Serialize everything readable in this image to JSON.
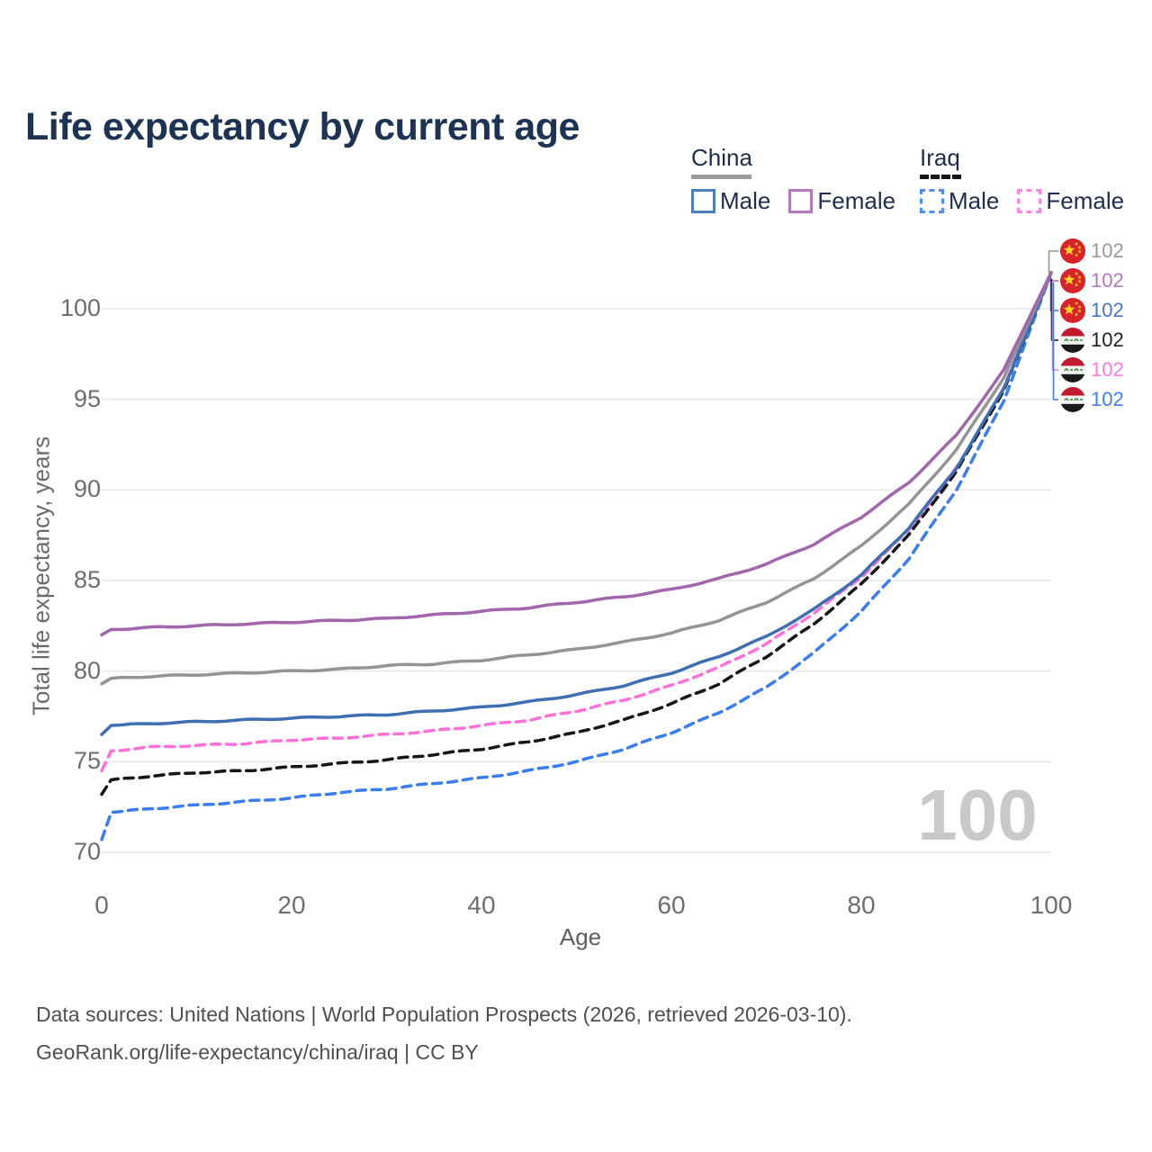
{
  "title": "Life expectancy by current age",
  "watermark": "100",
  "legend": {
    "groups": [
      {
        "key": "china",
        "header": "China",
        "line_style": "solid",
        "line_color": "#9a9a9a",
        "entries": [
          {
            "key": "china-male",
            "label": "Male",
            "color": "#4d7fbe",
            "dash": "solid"
          },
          {
            "key": "china-female",
            "label": "Female",
            "color": "#b279bd",
            "dash": "solid"
          }
        ]
      },
      {
        "key": "iraq",
        "header": "Iraq",
        "line_style": "dashed",
        "line_color": "#161616",
        "entries": [
          {
            "key": "iraq-male",
            "label": "Male",
            "color": "#4d8cf5",
            "dash": "dashed"
          },
          {
            "key": "iraq-female",
            "label": "Female",
            "color": "#ff85e2",
            "dash": "dashed"
          }
        ]
      }
    ]
  },
  "y_axis": {
    "title": "Total life expectancy, years",
    "ticks": [
      70,
      75,
      80,
      85,
      90,
      95,
      100
    ]
  },
  "x_axis": {
    "title": "Age",
    "ticks": [
      0,
      20,
      40,
      60,
      80,
      100
    ]
  },
  "footer": {
    "line1": "Data sources: United Nations | World Population Prospects (2026, retrieved 2026-03-10).",
    "line2": "GeoRank.org/life-expectancy/china/iraq | CC BY"
  },
  "chart_data": {
    "type": "line",
    "title": "Life expectancy by current age",
    "xlabel": "Age",
    "ylabel": "Total life expectancy, years",
    "xlim": [
      0,
      100
    ],
    "ylim": [
      70,
      102.5
    ],
    "grid": true,
    "legend_position": "top-right",
    "x": [
      0,
      1,
      5,
      10,
      15,
      20,
      25,
      30,
      35,
      40,
      45,
      50,
      55,
      60,
      65,
      70,
      75,
      80,
      85,
      90,
      95,
      100
    ],
    "series": [
      {
        "key": "china-total",
        "name": "China",
        "sex": "Total",
        "color": "#949494",
        "label_color": "#999999",
        "dash": "solid",
        "flag": "china",
        "end_label": "102",
        "values": [
          79.3,
          79.6,
          79.7,
          79.8,
          79.9,
          80.0,
          80.1,
          80.3,
          80.4,
          80.6,
          80.9,
          81.2,
          81.6,
          82.1,
          82.8,
          83.8,
          85.1,
          86.9,
          89.2,
          92.2,
          96.2,
          102
        ]
      },
      {
        "key": "china-female",
        "name": "China Female",
        "sex": "Female",
        "color": "#a266ac",
        "label_color": "#b379be",
        "dash": "solid",
        "flag": "china",
        "end_label": "102",
        "values": [
          82.0,
          82.3,
          82.4,
          82.5,
          82.6,
          82.7,
          82.8,
          82.9,
          83.1,
          83.3,
          83.5,
          83.8,
          84.1,
          84.5,
          85.1,
          85.9,
          87.0,
          88.5,
          90.4,
          93.0,
          96.6,
          102
        ]
      },
      {
        "key": "china-male",
        "name": "China Male",
        "sex": "Male",
        "color": "#3e6fb2",
        "label_color": "#4577c6",
        "dash": "solid",
        "flag": "china",
        "end_label": "102",
        "values": [
          76.5,
          77.0,
          77.1,
          77.2,
          77.3,
          77.4,
          77.5,
          77.6,
          77.8,
          78.0,
          78.3,
          78.7,
          79.2,
          79.9,
          80.8,
          81.9,
          83.4,
          85.3,
          87.9,
          91.2,
          95.6,
          102
        ]
      },
      {
        "key": "iraq-total",
        "name": "Iraq",
        "sex": "Total",
        "color": "#161616",
        "label_color": "#1e1e1e",
        "dash": "dashed",
        "flag": "iraq",
        "end_label": "102",
        "values": [
          73.2,
          74.0,
          74.2,
          74.4,
          74.5,
          74.7,
          74.9,
          75.1,
          75.4,
          75.7,
          76.1,
          76.6,
          77.3,
          78.2,
          79.3,
          80.8,
          82.6,
          84.8,
          87.5,
          91.0,
          95.5,
          102
        ]
      },
      {
        "key": "iraq-female",
        "name": "Iraq Female",
        "sex": "Female",
        "color": "#ff70d9",
        "label_color": "#ff7ae1",
        "dash": "dashed",
        "flag": "iraq",
        "end_label": "102",
        "values": [
          74.5,
          75.6,
          75.8,
          75.9,
          76.0,
          76.2,
          76.3,
          76.5,
          76.7,
          77.0,
          77.3,
          77.8,
          78.4,
          79.2,
          80.2,
          81.5,
          83.2,
          85.2,
          87.8,
          91.2,
          95.6,
          102
        ]
      },
      {
        "key": "iraq-male",
        "name": "Iraq Male",
        "sex": "Male",
        "color": "#3a7df0",
        "label_color": "#4080f4",
        "dash": "dashed",
        "flag": "iraq",
        "end_label": "102",
        "values": [
          70.7,
          72.2,
          72.4,
          72.6,
          72.8,
          73.0,
          73.3,
          73.5,
          73.8,
          74.1,
          74.5,
          75.0,
          75.7,
          76.6,
          77.7,
          79.1,
          81.0,
          83.3,
          86.2,
          90.0,
          94.9,
          102
        ]
      }
    ],
    "end_label_rows": [
      "china-total",
      "china-female",
      "china-male",
      "iraq-total",
      "iraq-female",
      "iraq-male"
    ]
  }
}
